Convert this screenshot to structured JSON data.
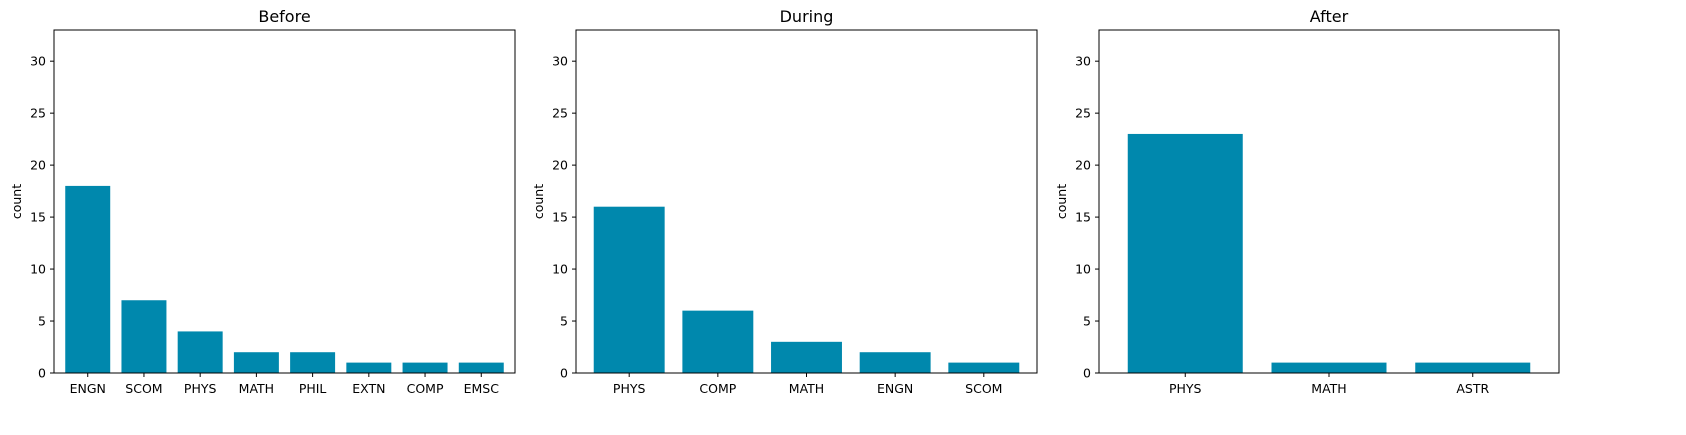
{
  "bar_color": "#0088ad",
  "chart_data": [
    {
      "type": "bar",
      "title": "Before",
      "xlabel": "",
      "ylabel": "count",
      "ylim": [
        0,
        33
      ],
      "yticks": [
        0,
        5,
        10,
        15,
        20,
        25,
        30
      ],
      "categories": [
        "ENGN",
        "SCOM",
        "PHYS",
        "MATH",
        "PHIL",
        "EXTN",
        "COMP",
        "EMSC"
      ],
      "values": [
        18,
        7,
        4,
        2,
        2,
        1,
        1,
        1
      ],
      "grid": false
    },
    {
      "type": "bar",
      "title": "During",
      "xlabel": "",
      "ylabel": "count",
      "ylim": [
        0,
        33
      ],
      "yticks": [
        0,
        5,
        10,
        15,
        20,
        25,
        30
      ],
      "categories": [
        "PHYS",
        "COMP",
        "MATH",
        "ENGN",
        "SCOM"
      ],
      "values": [
        16,
        6,
        3,
        2,
        1
      ],
      "grid": false
    },
    {
      "type": "bar",
      "title": "After",
      "xlabel": "",
      "ylabel": "count",
      "ylim": [
        0,
        33
      ],
      "yticks": [
        0,
        5,
        10,
        15,
        20,
        25,
        30
      ],
      "categories": [
        "PHYS",
        "MATH",
        "ASTR"
      ],
      "values": [
        23,
        1,
        1
      ],
      "grid": false
    }
  ]
}
